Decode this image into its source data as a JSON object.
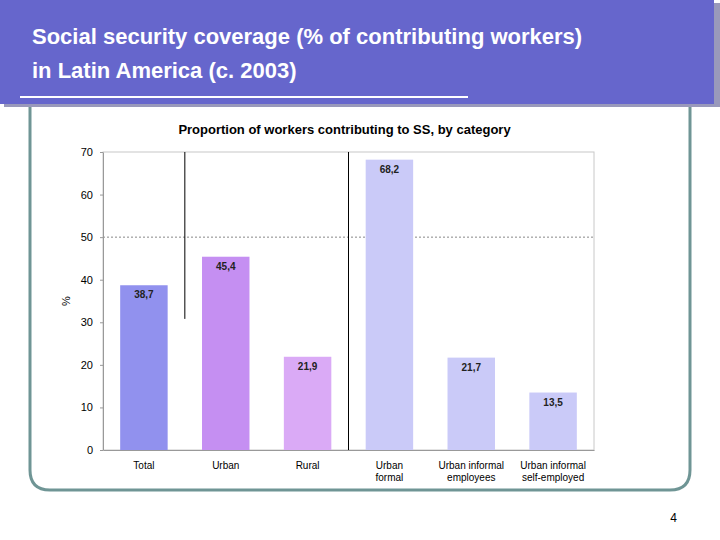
{
  "slide_title": "Social security coverage (% of contributing workers) in Latin America (c. 2003)",
  "page_number": "4",
  "chart_data": {
    "type": "bar",
    "title": "Proportion of workers contributing to SS, by category",
    "y_label": "%",
    "categories": [
      "Total",
      "Urban",
      "Rural",
      "Urban formal",
      "Urban informal employees",
      "Urban informal self-employed"
    ],
    "values": [
      38.7,
      45.4,
      21.9,
      68.2,
      21.7,
      13.5
    ],
    "value_labels": [
      "38,7",
      "45,4",
      "21,9",
      "68,2",
      "21,7",
      "13,5"
    ],
    "colors": [
      "#9191ee",
      "#c58ff2",
      "#daaaf6",
      "#cacaf8",
      "#cacaf8",
      "#cacaf8"
    ],
    "ylim": [
      0,
      70
    ],
    "yticks": [
      0,
      10,
      20,
      30,
      40,
      50,
      60,
      70
    ],
    "reference_lines": [
      50
    ],
    "data_labels": true,
    "grid": false
  }
}
